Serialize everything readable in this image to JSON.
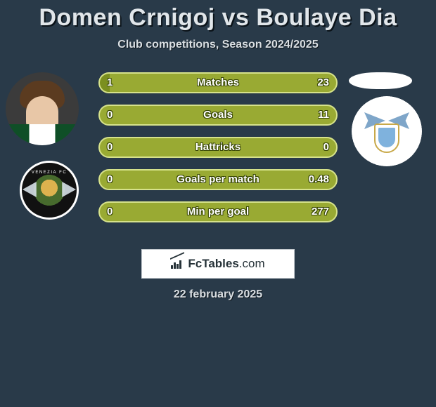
{
  "title": "Domen Crnigoj vs Boulaye Dia",
  "subtitle": "Club competitions, Season 2024/2025",
  "date": "22 february 2025",
  "colors": {
    "page_bg": "#293a49",
    "bar_fill": "#99aa33",
    "bar_seg": "#7b8f1f",
    "bar_border": "#d6e28b",
    "text": "#e1e6ea"
  },
  "bars": [
    {
      "label": "Matches",
      "left": "1",
      "right": "23",
      "left_pct": 4.2
    },
    {
      "label": "Goals",
      "left": "0",
      "right": "11",
      "left_pct": 0.0
    },
    {
      "label": "Hattricks",
      "left": "0",
      "right": "0",
      "left_pct": 0.0
    },
    {
      "label": "Goals per match",
      "left": "0",
      "right": "0.48",
      "left_pct": 0.0
    },
    {
      "label": "Min per goal",
      "left": "0",
      "right": "277",
      "left_pct": 0.0
    }
  ],
  "brand": {
    "name": "FcTables",
    "tld": ".com"
  },
  "players": {
    "left": {
      "name": "Domen Crnigoj",
      "club": "Venezia"
    },
    "right": {
      "name": "Boulaye Dia",
      "club": "Lazio"
    }
  }
}
